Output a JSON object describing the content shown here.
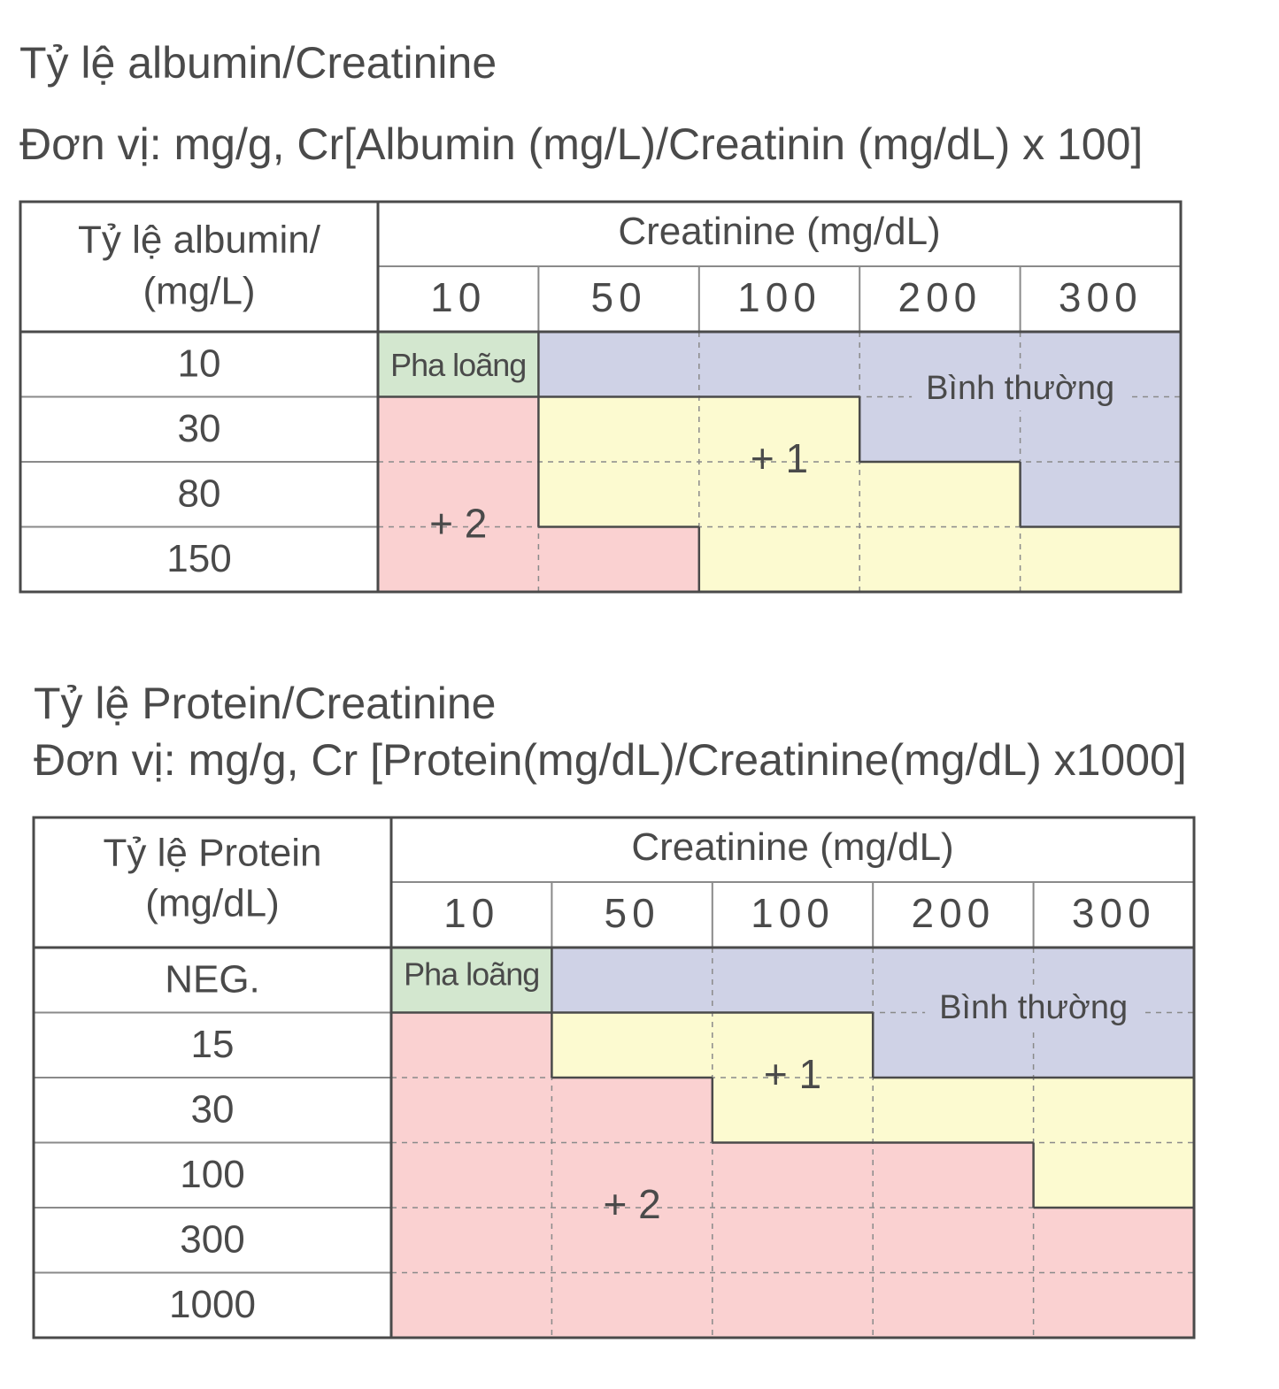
{
  "colors": {
    "dilute": "#d3e7cf",
    "normal": "#cfd2e6",
    "plus1": "#fcfad0",
    "plus2": "#fad1d1",
    "border": "#4a4a4a",
    "text": "#4a4a4a"
  },
  "tables": [
    {
      "title": "Tỷ lệ albumin/Creatinine",
      "unit": "Đơn vị: mg/g, Cr[Albumin (mg/L)/Creatinin (mg/dL) x 100]",
      "row_header_lines": [
        "Tỷ lệ albumin/",
        "(mg/L)"
      ],
      "col_group_header": "Creatinine (mg/dL)",
      "columns": [
        "10",
        "50",
        "100",
        "200",
        "300"
      ],
      "rows": [
        "10",
        "30",
        "80",
        "150"
      ],
      "grade_labels": {
        "dilute": "Pha loãng",
        "normal": "Bình thường",
        "plus1": "+ 1",
        "plus2": "+ 2"
      },
      "grades": [
        [
          "dilute",
          "normal",
          "normal",
          "normal",
          "normal"
        ],
        [
          "plus2",
          "plus1",
          "plus1",
          "normal",
          "normal"
        ],
        [
          "plus2",
          "plus1",
          "plus1",
          "plus1",
          "normal"
        ],
        [
          "plus2",
          "plus2",
          "plus1",
          "plus1",
          "plus1"
        ]
      ]
    },
    {
      "title": "Tỷ lệ Protein/Creatinine",
      "unit": "Đơn vị: mg/g, Cr [Protein(mg/dL)/Creatinine(mg/dL) x1000]",
      "row_header_lines": [
        "Tỷ lệ Protein",
        "(mg/dL)"
      ],
      "col_group_header": "Creatinine (mg/dL)",
      "columns": [
        "10",
        "50",
        "100",
        "200",
        "300"
      ],
      "rows": [
        "NEG.",
        "15",
        "30",
        "100",
        "300",
        "1000"
      ],
      "grade_labels": {
        "dilute": "Pha loãng",
        "normal": "Bình thường",
        "plus1": "+ 1",
        "plus2": "+ 2"
      },
      "grades": [
        [
          "dilute",
          "normal",
          "normal",
          "normal",
          "normal"
        ],
        [
          "plus2",
          "plus1",
          "plus1",
          "normal",
          "normal"
        ],
        [
          "plus2",
          "plus2",
          "plus1",
          "plus1",
          "plus1"
        ],
        [
          "plus2",
          "plus2",
          "plus2",
          "plus2",
          "plus1"
        ],
        [
          "plus2",
          "plus2",
          "plus2",
          "plus2",
          "plus2"
        ],
        [
          "plus2",
          "plus2",
          "plus2",
          "plus2",
          "plus2"
        ]
      ]
    }
  ]
}
